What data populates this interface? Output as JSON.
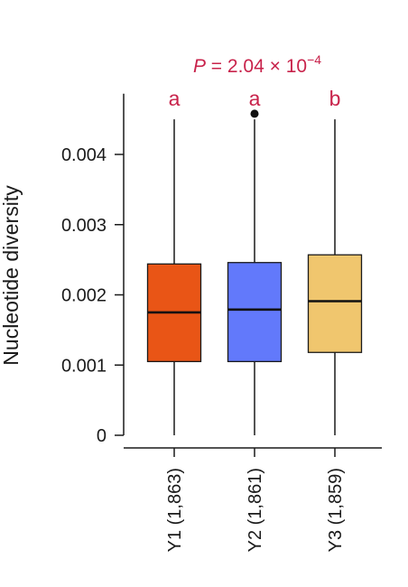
{
  "chart_data": {
    "type": "box",
    "ylabel": "Nucleotide diversity",
    "ylim": [
      0,
      0.0048
    ],
    "yticks": [
      {
        "value": 0,
        "label": "0"
      },
      {
        "value": 0.001,
        "label": "0.001"
      },
      {
        "value": 0.002,
        "label": "0.002"
      },
      {
        "value": 0.003,
        "label": "0.003"
      },
      {
        "value": 0.004,
        "label": "0.004"
      }
    ],
    "pvalue": {
      "prefix": "P",
      "text": " = 2.04 × 10",
      "exponent": "−4"
    },
    "groups": [
      {
        "label": "Y1 (1,863)",
        "letter": "a",
        "color": "#E95516",
        "whisker_low": 0.0,
        "q1": 0.00105,
        "median": 0.00175,
        "q3": 0.00244,
        "whisker_high": 0.0045,
        "outliers": []
      },
      {
        "label": "Y2 (1,861)",
        "letter": "a",
        "color": "#6279FB",
        "whisker_low": 0.0,
        "q1": 0.00105,
        "median": 0.00179,
        "q3": 0.00246,
        "whisker_high": 0.0045,
        "outliers": [
          0.00458
        ]
      },
      {
        "label": "Y3 (1,859)",
        "letter": "b",
        "color": "#F0C66E",
        "whisker_low": 0.0,
        "q1": 0.00118,
        "median": 0.00191,
        "q3": 0.00257,
        "whisker_high": 0.0045,
        "outliers": []
      }
    ],
    "annotation_color": "#C8234B"
  }
}
